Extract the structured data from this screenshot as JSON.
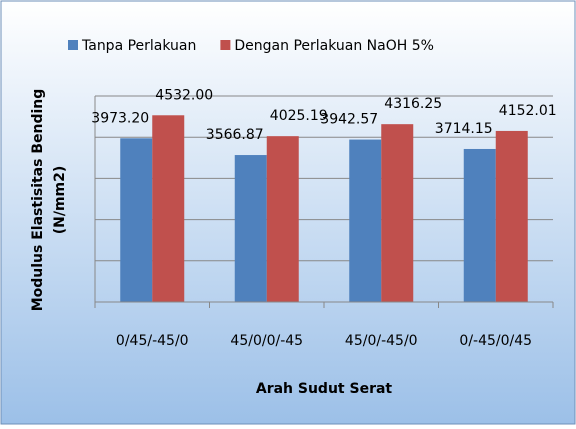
{
  "chart_data": {
    "type": "bar",
    "x_label": "Arah Sudut Serat",
    "y_label": [
      "Modulus Elastisitas Bending",
      "(N/mm2)"
    ],
    "categories": [
      "0/45/-45/0",
      "45/0/0/-45",
      "45/0/-45/0",
      "0/-45/0/45"
    ],
    "series": [
      {
        "name": "Tanpa Perlakuan",
        "color": "#4f81bd",
        "values": [
          3973.2,
          3566.87,
          3942.57,
          3714.15
        ],
        "value_labels": [
          "3973.20",
          "3566.87",
          "3942.57",
          "3714.15"
        ]
      },
      {
        "name": "Dengan Perlakuan NaOH 5%",
        "color": "#c0504d",
        "values": [
          4532,
          4025.19,
          4316.25,
          4152.01
        ],
        "value_labels": [
          "4532.00",
          "4025.19",
          "4316.25",
          "4152.01"
        ]
      }
    ],
    "ylim": [
      0,
      5000
    ],
    "yticks": [
      0,
      1000,
      2000,
      3000,
      4000,
      5000
    ],
    "grid": true
  }
}
